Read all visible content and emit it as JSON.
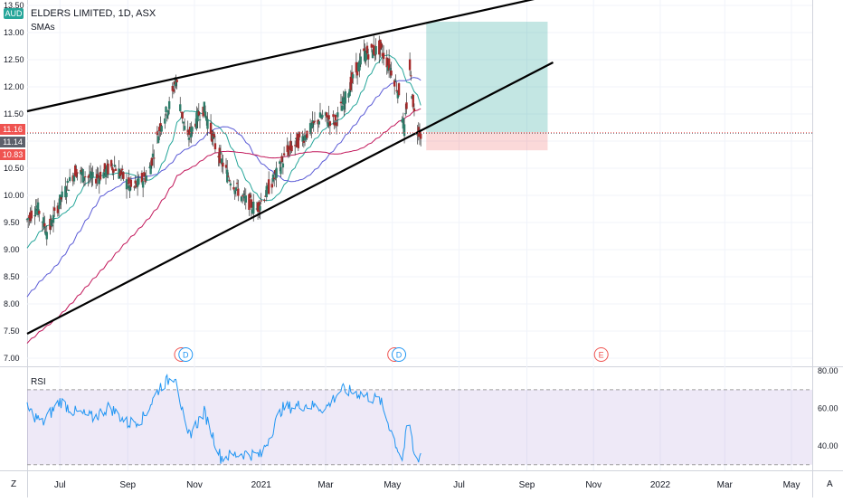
{
  "header": {
    "currency": "AUD",
    "title": "ELDERS LIMITED, 1D, ASX",
    "indicator": "SMAs",
    "rsi_label": "RSI"
  },
  "corner_left": "Z",
  "corner_right": "A",
  "price_tags": [
    {
      "value": "11.16",
      "color": "#ef5350"
    },
    {
      "value": "11.14",
      "color": "#5d606b"
    },
    {
      "value": "10.83",
      "color": "#ef5350"
    }
  ],
  "event_markers": [
    {
      "date": "2020-10-20",
      "type": "E"
    },
    {
      "date": "2020-10-24",
      "type": "D"
    },
    {
      "date": "2021-05-03",
      "type": "E"
    },
    {
      "date": "2021-05-07",
      "type": "D"
    },
    {
      "date": "2021-11-08",
      "type": "E"
    }
  ],
  "chart_data": [
    {
      "type": "candlestick",
      "title": "ELDERS LIMITED, 1D, ASX",
      "x_ticks": [
        "Jul",
        "Sep",
        "Nov",
        "2021",
        "Mar",
        "May",
        "Jul",
        "Sep",
        "Nov",
        "2022",
        "Mar",
        "May"
      ],
      "x_tick_dates": [
        "2020-07-01",
        "2020-09-01",
        "2020-11-01",
        "2021-01-01",
        "2021-03-01",
        "2021-05-01",
        "2021-07-01",
        "2021-09-01",
        "2021-11-01",
        "2022-01-01",
        "2022-03-01",
        "2022-05-01"
      ],
      "y_ticks": [
        "7.00",
        "7.50",
        "8.00",
        "8.50",
        "9.00",
        "9.50",
        "10.00",
        "10.50",
        "11.00",
        "11.50",
        "12.00",
        "12.50",
        "13.00",
        "13.50"
      ],
      "ylim": [
        6.85,
        13.6
      ],
      "price_path": [
        {
          "date": "2020-06-01",
          "close": 9.55
        },
        {
          "date": "2020-06-10",
          "close": 9.8
        },
        {
          "date": "2020-06-20",
          "close": 9.3
        },
        {
          "date": "2020-07-01",
          "close": 9.9
        },
        {
          "date": "2020-07-15",
          "close": 10.45
        },
        {
          "date": "2020-08-01",
          "close": 10.3
        },
        {
          "date": "2020-08-20",
          "close": 10.55
        },
        {
          "date": "2020-09-05",
          "close": 10.1
        },
        {
          "date": "2020-09-20",
          "close": 10.4
        },
        {
          "date": "2020-10-01",
          "close": 11.3
        },
        {
          "date": "2020-10-10",
          "close": 11.7
        },
        {
          "date": "2020-10-15",
          "close": 12.15
        },
        {
          "date": "2020-10-25",
          "close": 11.0
        },
        {
          "date": "2020-11-05",
          "close": 11.5
        },
        {
          "date": "2020-11-10",
          "close": 11.6
        },
        {
          "date": "2020-11-20",
          "close": 10.9
        },
        {
          "date": "2020-12-01",
          "close": 10.4
        },
        {
          "date": "2020-12-15",
          "close": 9.95
        },
        {
          "date": "2020-12-28",
          "close": 9.75
        },
        {
          "date": "2021-01-10",
          "close": 10.2
        },
        {
          "date": "2021-01-25",
          "close": 10.8
        },
        {
          "date": "2021-02-10",
          "close": 11.1
        },
        {
          "date": "2021-02-25",
          "close": 11.45
        },
        {
          "date": "2021-03-10",
          "close": 11.35
        },
        {
          "date": "2021-03-25",
          "close": 12.1
        },
        {
          "date": "2021-04-05",
          "close": 12.6
        },
        {
          "date": "2021-04-20",
          "close": 12.7
        },
        {
          "date": "2021-04-30",
          "close": 12.3
        },
        {
          "date": "2021-05-07",
          "close": 11.9
        },
        {
          "date": "2021-05-12",
          "close": 11.2
        },
        {
          "date": "2021-05-17",
          "close": 12.35
        },
        {
          "date": "2021-05-22",
          "close": 11.3
        },
        {
          "date": "2021-05-27",
          "close": 11.14
        }
      ],
      "sma_fast": {
        "name": "",
        "color": "#26a69a"
      },
      "sma_mid": {
        "name": "",
        "color": "#5b5bd6"
      },
      "sma_slow": {
        "name": "",
        "color": "#c2185b"
      },
      "trendlines": [
        {
          "from": {
            "date": "2020-06-01",
            "price": 11.55
          },
          "to": {
            "date": "2021-09-15",
            "price": 13.65
          }
        },
        {
          "from": {
            "date": "2020-06-01",
            "price": 7.45
          },
          "to": {
            "date": "2021-09-25",
            "price": 12.45
          }
        }
      ],
      "position": {
        "entry": 11.16,
        "target": 13.2,
        "stop": 10.83,
        "start": "2021-06-01",
        "end": "2021-09-20"
      },
      "price_lines": [
        11.16,
        11.14
      ]
    },
    {
      "type": "line",
      "title": "RSI",
      "y_ticks": [
        "40.00",
        "60.00",
        "80.00"
      ],
      "ylim": [
        27,
        82
      ],
      "band": [
        30,
        70
      ],
      "line_color": "#2196f3",
      "band_color": "#7e57c2",
      "values": [
        {
          "date": "2020-06-01",
          "v": 60
        },
        {
          "date": "2020-06-15",
          "v": 52
        },
        {
          "date": "2020-07-01",
          "v": 64
        },
        {
          "date": "2020-07-15",
          "v": 58
        },
        {
          "date": "2020-08-01",
          "v": 55
        },
        {
          "date": "2020-08-15",
          "v": 61
        },
        {
          "date": "2020-09-01",
          "v": 52
        },
        {
          "date": "2020-09-15",
          "v": 55
        },
        {
          "date": "2020-10-01",
          "v": 72
        },
        {
          "date": "2020-10-15",
          "v": 78
        },
        {
          "date": "2020-10-25",
          "v": 44
        },
        {
          "date": "2020-11-10",
          "v": 58
        },
        {
          "date": "2020-11-25",
          "v": 34
        },
        {
          "date": "2020-12-15",
          "v": 36
        },
        {
          "date": "2021-01-01",
          "v": 35
        },
        {
          "date": "2021-01-20",
          "v": 60
        },
        {
          "date": "2021-02-10",
          "v": 62
        },
        {
          "date": "2021-03-01",
          "v": 60
        },
        {
          "date": "2021-03-15",
          "v": 70
        },
        {
          "date": "2021-04-01",
          "v": 68
        },
        {
          "date": "2021-04-20",
          "v": 64
        },
        {
          "date": "2021-05-05",
          "v": 40
        },
        {
          "date": "2021-05-10",
          "v": 33
        },
        {
          "date": "2021-05-16",
          "v": 55
        },
        {
          "date": "2021-05-22",
          "v": 31
        },
        {
          "date": "2021-05-27",
          "v": 36
        }
      ]
    }
  ]
}
